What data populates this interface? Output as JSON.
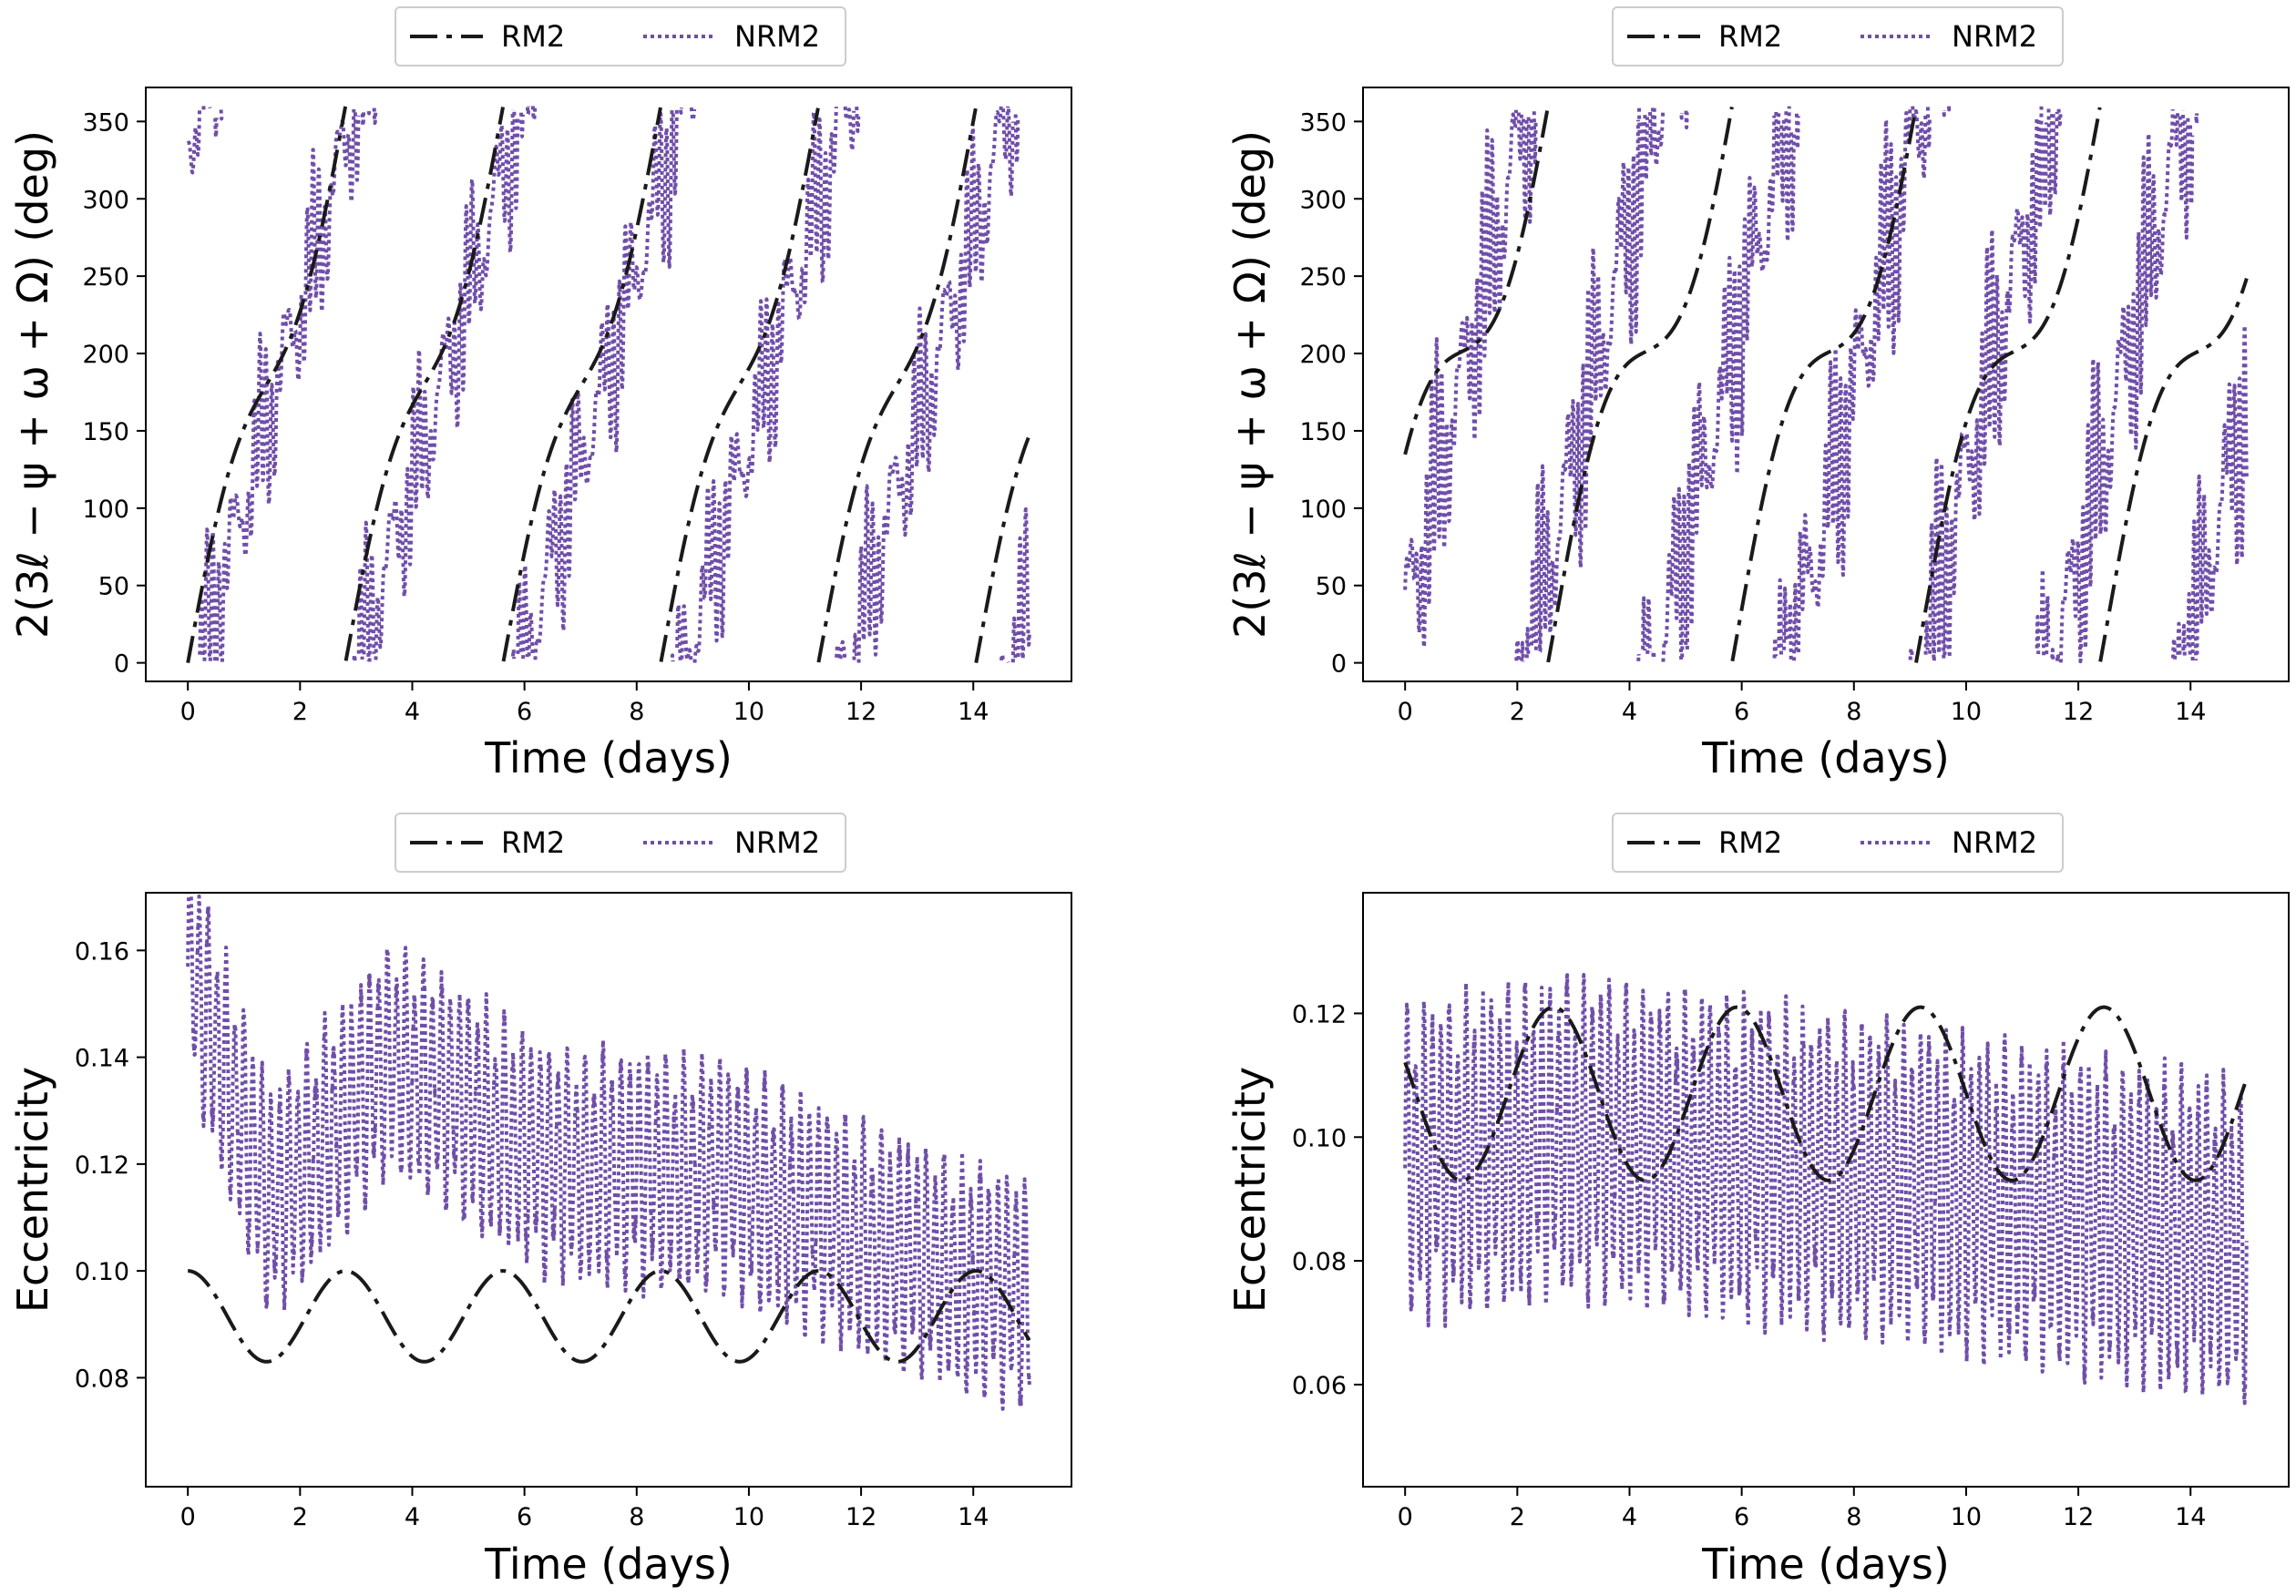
{
  "colors": {
    "rm2": "#1a1a1a",
    "nrm2": "#6f4ea8",
    "frame": "#000000",
    "legend_border": "#cccccc"
  },
  "chart_data": [
    {
      "id": "phase-left",
      "type": "line",
      "xlabel": "Time (days)",
      "ylabel": "2(3ℓ − ψ + ω + Ω) (deg)",
      "xlim": [
        -0.75,
        15.75
      ],
      "ylim": [
        -12,
        372
      ],
      "xticks": [
        0,
        2,
        4,
        6,
        8,
        10,
        12,
        14
      ],
      "xtick_labels": [
        "0",
        "2",
        "4",
        "6",
        "8",
        "10",
        "12",
        "14"
      ],
      "yticks": [
        0,
        50,
        100,
        150,
        200,
        250,
        300,
        350
      ],
      "ytick_labels": [
        "0",
        "50",
        "100",
        "150",
        "200",
        "250",
        "300",
        "350"
      ],
      "legend": [
        "RM2",
        "NRM2"
      ],
      "legend_position": "above-center",
      "series": [
        {
          "name": "RM2",
          "kind": "phase",
          "period": 2.81,
          "start": 0,
          "amp": 30,
          "phase": 0
        },
        {
          "name": "NRM2",
          "kind": "phase_noisy",
          "period": 2.9,
          "start": 340,
          "osc_period": 0.105,
          "osc_amp": 48,
          "wiggle": 25,
          "seed": 11
        }
      ]
    },
    {
      "id": "phase-right",
      "type": "line",
      "xlabel": "Time (days)",
      "ylabel": "2(3ℓ − ψ + ω + Ω) (deg)",
      "xlim": [
        -0.75,
        15.75
      ],
      "ylim": [
        -12,
        372
      ],
      "xticks": [
        0,
        2,
        4,
        6,
        8,
        10,
        12,
        14
      ],
      "xtick_labels": [
        "0",
        "2",
        "4",
        "6",
        "8",
        "10",
        "12",
        "14"
      ],
      "yticks": [
        0,
        50,
        100,
        150,
        200,
        250,
        300,
        350
      ],
      "ytick_labels": [
        "0",
        "50",
        "100",
        "150",
        "200",
        "250",
        "300",
        "350"
      ],
      "legend": [
        "RM2",
        "NRM2"
      ],
      "legend_position": "above-center",
      "series": [
        {
          "name": "RM2",
          "kind": "phase",
          "period": 3.28,
          "start": 90,
          "amp": 48,
          "phase": 1.2
        },
        {
          "name": "NRM2",
          "kind": "phase_noisy",
          "period": 2.35,
          "start": 30,
          "osc_period": 0.09,
          "osc_amp": 65,
          "wiggle": 30,
          "seed": 23
        }
      ]
    },
    {
      "id": "ecc-left",
      "type": "line",
      "xlabel": "Time (days)",
      "ylabel": "Eccentricity",
      "xlim": [
        -0.75,
        15.75
      ],
      "ylim": [
        0.0596,
        0.1708
      ],
      "xticks": [
        0,
        2,
        4,
        6,
        8,
        10,
        12,
        14
      ],
      "xtick_labels": [
        "0",
        "2",
        "4",
        "6",
        "8",
        "10",
        "12",
        "14"
      ],
      "yticks": [
        0.08,
        0.1,
        0.12,
        0.14,
        0.16
      ],
      "ytick_labels": [
        "0.08",
        "0.10",
        "0.12",
        "0.14",
        "0.16"
      ],
      "legend": [
        "RM2",
        "NRM2"
      ],
      "legend_position": "above-center",
      "series": [
        {
          "name": "RM2",
          "kind": "ecc",
          "mean": 0.0915,
          "amp": 0.0085,
          "period": 2.81,
          "phase": 0
        },
        {
          "name": "NRM2",
          "kind": "ecc_noisy",
          "envelope": [
            [
              0,
              0.158
            ],
            [
              1.5,
              0.112
            ],
            [
              3.6,
              0.14
            ],
            [
              6.5,
              0.12
            ],
            [
              9.5,
              0.118
            ],
            [
              12,
              0.106
            ],
            [
              15,
              0.095
            ]
          ],
          "swing": 0.022,
          "osc_period": 0.16,
          "seed": 5
        }
      ]
    },
    {
      "id": "ecc-right",
      "type": "line",
      "xlabel": "Time (days)",
      "ylabel": "Eccentricity",
      "xlim": [
        -0.75,
        15.75
      ],
      "ylim": [
        0.0435,
        0.1395
      ],
      "xticks": [
        0,
        2,
        4,
        6,
        8,
        10,
        12,
        14
      ],
      "xtick_labels": [
        "0",
        "2",
        "4",
        "6",
        "8",
        "10",
        "12",
        "14"
      ],
      "yticks": [
        0.06,
        0.08,
        0.1,
        0.12
      ],
      "ytick_labels": [
        "0.06",
        "0.08",
        "0.10",
        "0.12"
      ],
      "legend": [
        "RM2",
        "NRM2"
      ],
      "legend_position": "above-center",
      "series": [
        {
          "name": "RM2",
          "kind": "ecc",
          "mean": 0.107,
          "amp": 0.014,
          "period": 3.27,
          "phase": 1.2
        },
        {
          "name": "NRM2",
          "kind": "ecc_noisy",
          "envelope": [
            [
              0,
              0.096
            ],
            [
              3,
              0.1
            ],
            [
              7,
              0.095
            ],
            [
              11,
              0.089
            ],
            [
              15,
              0.083
            ]
          ],
          "swing": 0.026,
          "osc_period": 0.15,
          "seed": 17
        }
      ]
    }
  ]
}
